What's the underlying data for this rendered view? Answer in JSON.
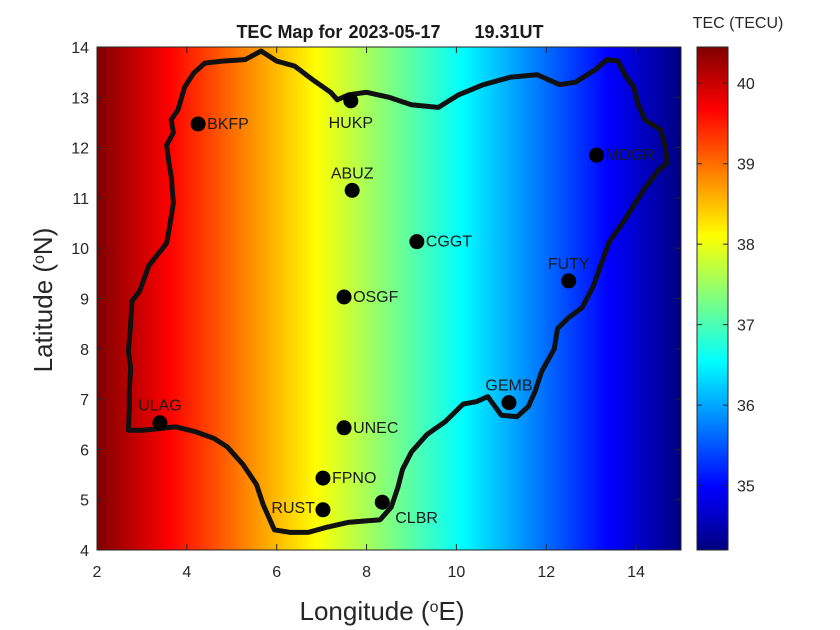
{
  "chart_data": {
    "type": "heatmap",
    "title_prefix": "TEC Map for",
    "date": "2023-05-17",
    "time": "19.31UT",
    "xlabel_main": "Longitude (",
    "xlabel_sup": "o",
    "xlabel_end": "E)",
    "ylabel_main": "Latitude (",
    "ylabel_sup": "o",
    "ylabel_end": "N)",
    "xlim": [
      2,
      15
    ],
    "ylim": [
      4,
      14
    ],
    "xticks": [
      2,
      4,
      6,
      8,
      10,
      12,
      14
    ],
    "yticks": [
      4,
      5,
      6,
      7,
      8,
      9,
      10,
      11,
      12,
      13,
      14
    ],
    "colorbar": {
      "label": "TEC (TECU)",
      "min": 34.2,
      "max": 40.45,
      "ticks": [
        35,
        36,
        37,
        38,
        39,
        40
      ],
      "colormap": "jet"
    },
    "field": {
      "varies_along": "longitude",
      "lon_points": [
        2,
        15
      ],
      "tec_values": [
        40.45,
        34.2
      ]
    },
    "stations": [
      {
        "name": "BKFP",
        "lon": 4.25,
        "lat": 12.47,
        "label_pos": "right"
      },
      {
        "name": "HUKP",
        "lon": 7.65,
        "lat": 12.93,
        "label_pos": "below"
      },
      {
        "name": "ABUZ",
        "lon": 7.68,
        "lat": 11.15,
        "label_pos": "above"
      },
      {
        "name": "MDGR",
        "lon": 13.12,
        "lat": 11.85,
        "label_pos": "right"
      },
      {
        "name": "CGGT",
        "lon": 9.12,
        "lat": 10.13,
        "label_pos": "right"
      },
      {
        "name": "FUTY",
        "lon": 12.5,
        "lat": 9.35,
        "label_pos": "above"
      },
      {
        "name": "OSGF",
        "lon": 7.5,
        "lat": 9.03,
        "label_pos": "right"
      },
      {
        "name": "GEMB",
        "lon": 11.17,
        "lat": 6.93,
        "label_pos": "above"
      },
      {
        "name": "ULAG",
        "lon": 3.4,
        "lat": 6.53,
        "label_pos": "above"
      },
      {
        "name": "UNEC",
        "lon": 7.5,
        "lat": 6.43,
        "label_pos": "right"
      },
      {
        "name": "FPNO",
        "lon": 7.03,
        "lat": 5.43,
        "label_pos": "right"
      },
      {
        "name": "RUST",
        "lon": 7.03,
        "lat": 4.8,
        "label_pos": "left"
      },
      {
        "name": "CLBR",
        "lon": 8.35,
        "lat": 4.95,
        "label_pos": "below-right"
      }
    ],
    "boundary": [
      [
        2.7,
        6.38
      ],
      [
        2.72,
        6.8
      ],
      [
        2.72,
        7.2
      ],
      [
        2.75,
        7.6
      ],
      [
        2.7,
        7.95
      ],
      [
        2.75,
        8.5
      ],
      [
        2.78,
        8.95
      ],
      [
        2.95,
        9.15
      ],
      [
        3.15,
        9.65
      ],
      [
        3.55,
        10.1
      ],
      [
        3.6,
        10.35
      ],
      [
        3.7,
        10.9
      ],
      [
        3.65,
        11.45
      ],
      [
        3.6,
        11.7
      ],
      [
        3.55,
        12.05
      ],
      [
        3.7,
        12.3
      ],
      [
        3.65,
        12.55
      ],
      [
        3.8,
        12.75
      ],
      [
        3.95,
        13.2
      ],
      [
        4.15,
        13.48
      ],
      [
        4.4,
        13.68
      ],
      [
        4.8,
        13.72
      ],
      [
        5.3,
        13.75
      ],
      [
        5.65,
        13.92
      ],
      [
        6.0,
        13.72
      ],
      [
        6.4,
        13.62
      ],
      [
        6.8,
        13.35
      ],
      [
        7.2,
        13.1
      ],
      [
        7.35,
        12.95
      ],
      [
        7.6,
        13.05
      ],
      [
        8.0,
        13.1
      ],
      [
        8.5,
        13.0
      ],
      [
        9.0,
        12.85
      ],
      [
        9.6,
        12.8
      ],
      [
        10.05,
        13.05
      ],
      [
        10.6,
        13.25
      ],
      [
        11.2,
        13.4
      ],
      [
        11.8,
        13.45
      ],
      [
        12.3,
        13.25
      ],
      [
        12.65,
        13.3
      ],
      [
        13.1,
        13.55
      ],
      [
        13.35,
        13.75
      ],
      [
        13.6,
        13.72
      ],
      [
        13.75,
        13.45
      ],
      [
        13.95,
        13.2
      ],
      [
        14.05,
        12.85
      ],
      [
        14.2,
        12.55
      ],
      [
        14.55,
        12.35
      ],
      [
        14.65,
        12.0
      ],
      [
        14.7,
        11.7
      ],
      [
        14.5,
        11.55
      ],
      [
        14.2,
        11.2
      ],
      [
        13.95,
        10.85
      ],
      [
        13.7,
        10.5
      ],
      [
        13.4,
        10.12
      ],
      [
        13.25,
        9.75
      ],
      [
        13.05,
        9.25
      ],
      [
        12.8,
        8.82
      ],
      [
        12.5,
        8.62
      ],
      [
        12.25,
        8.4
      ],
      [
        12.18,
        8.0
      ],
      [
        11.9,
        7.55
      ],
      [
        11.75,
        7.15
      ],
      [
        11.6,
        6.85
      ],
      [
        11.35,
        6.65
      ],
      [
        11.0,
        6.68
      ],
      [
        10.7,
        7.05
      ],
      [
        10.45,
        6.95
      ],
      [
        10.15,
        6.9
      ],
      [
        9.75,
        6.55
      ],
      [
        9.35,
        6.3
      ],
      [
        9.0,
        5.95
      ],
      [
        8.8,
        5.6
      ],
      [
        8.7,
        5.25
      ],
      [
        8.55,
        4.85
      ],
      [
        8.3,
        4.6
      ],
      [
        7.6,
        4.55
      ],
      [
        7.1,
        4.45
      ],
      [
        6.7,
        4.35
      ],
      [
        6.3,
        4.35
      ],
      [
        5.95,
        4.4
      ],
      [
        5.7,
        4.9
      ],
      [
        5.55,
        5.3
      ],
      [
        5.25,
        5.7
      ],
      [
        4.9,
        6.05
      ],
      [
        4.6,
        6.22
      ],
      [
        4.2,
        6.35
      ],
      [
        3.75,
        6.45
      ],
      [
        3.45,
        6.42
      ],
      [
        3.0,
        6.38
      ],
      [
        2.7,
        6.38
      ]
    ]
  }
}
